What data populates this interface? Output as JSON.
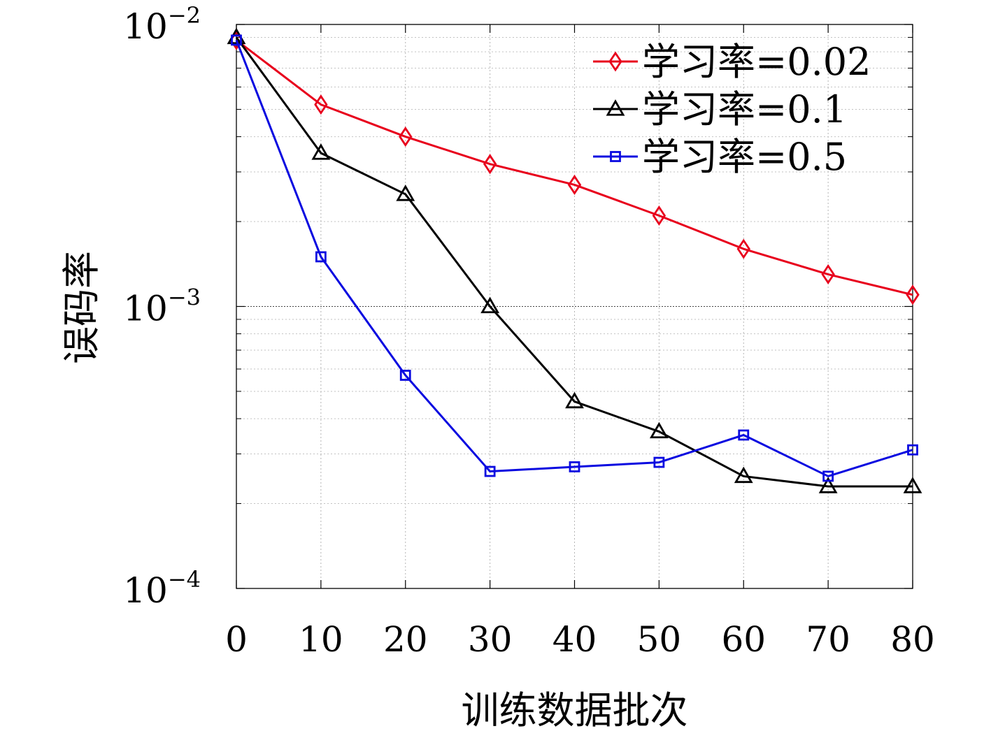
{
  "chart_data": {
    "type": "line",
    "title": "",
    "xlabel": "训练数据批次",
    "ylabel": "误码率",
    "x": [
      0,
      10,
      20,
      30,
      40,
      50,
      60,
      70,
      80
    ],
    "xlim": [
      0,
      80
    ],
    "xticks": [
      "0",
      "10",
      "20",
      "30",
      "40",
      "50",
      "60",
      "70",
      "80"
    ],
    "yscale": "log",
    "ylim": [
      0.0001,
      0.01
    ],
    "yticks": [
      {
        "value": 0.01,
        "base": "10",
        "exp": "−2"
      },
      {
        "value": 0.001,
        "base": "10",
        "exp": "−3"
      },
      {
        "value": 0.0001,
        "base": "10",
        "exp": "−4"
      }
    ],
    "grid": true,
    "legend_position": "top-right",
    "series": [
      {
        "name": "学习率=0.02",
        "color": "#e8001c",
        "marker": "diamond",
        "values": [
          0.0088,
          0.0052,
          0.004,
          0.0032,
          0.0027,
          0.0021,
          0.0016,
          0.0013,
          0.0011
        ]
      },
      {
        "name": "学习率=0.1",
        "color": "#000000",
        "marker": "triangle",
        "values": [
          0.009,
          0.0035,
          0.0025,
          0.001,
          0.00046,
          0.00036,
          0.00025,
          0.00023,
          0.00023
        ]
      },
      {
        "name": "学习率=0.5",
        "color": "#0a0ae0",
        "marker": "square",
        "values": [
          0.0088,
          0.0015,
          0.00057,
          0.00026,
          0.00027,
          0.00028,
          0.00035,
          0.00025,
          0.00031
        ]
      }
    ]
  }
}
